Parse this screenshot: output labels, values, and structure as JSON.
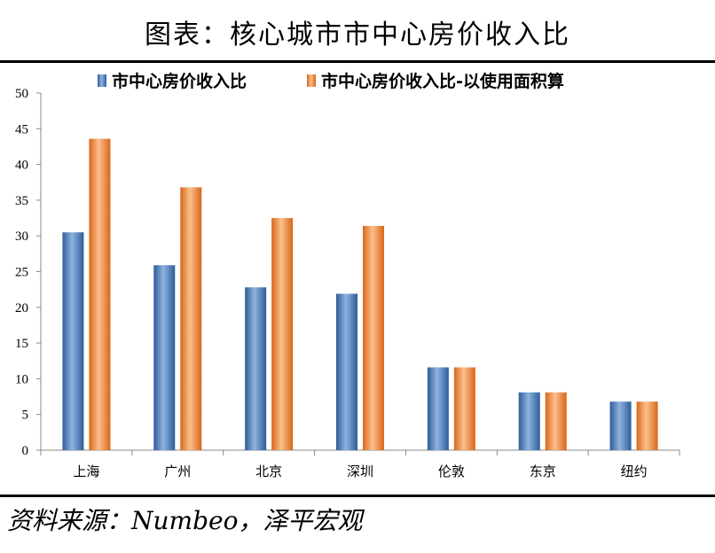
{
  "header": {
    "title": "图表：核心城市市中心房价收入比"
  },
  "footer": {
    "source": "资料来源：Numbeo，泽平宏观"
  },
  "colors": {
    "series1": "#4f81bd",
    "series2": "#f79646"
  },
  "chart_data": {
    "type": "bar",
    "title": "",
    "xlabel": "",
    "ylabel": "",
    "categories": [
      "上海",
      "广州",
      "北京",
      "深圳",
      "伦敦",
      "东京",
      "纽约"
    ],
    "series": [
      {
        "name": "市中心房价收入比",
        "values": [
          30.5,
          25.9,
          22.8,
          21.9,
          11.6,
          8.1,
          6.8
        ]
      },
      {
        "name": "市中心房价收入比-以使用面积算",
        "values": [
          43.6,
          36.8,
          32.5,
          31.4,
          11.6,
          8.1,
          6.8
        ]
      }
    ],
    "ylim": [
      0,
      50
    ],
    "yticks": [
      0,
      5,
      10,
      15,
      20,
      25,
      30,
      35,
      40,
      45,
      50
    ],
    "grid": false,
    "legend": "top"
  }
}
